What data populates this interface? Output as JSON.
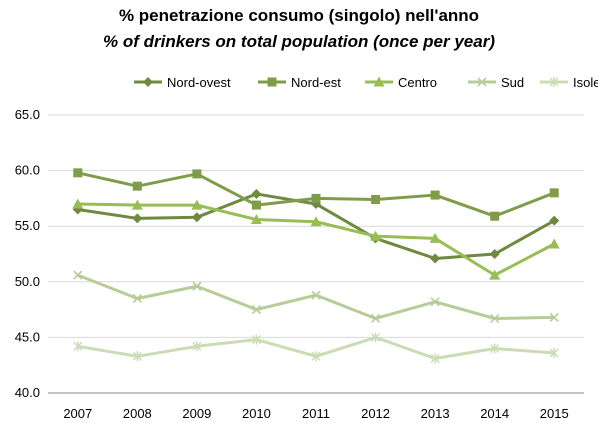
{
  "chart_data": {
    "type": "line",
    "title": "% penetrazione consumo (singolo) nell'anno",
    "subtitle": "% of drinkers on total population (once per year)",
    "xlabel": "",
    "ylabel": "",
    "x": [
      "2007",
      "2008",
      "2009",
      "2010",
      "2011",
      "2012",
      "2013",
      "2014",
      "2015"
    ],
    "ylim": [
      40.0,
      65.0
    ],
    "yticks": [
      "40.0",
      "45.0",
      "50.0",
      "55.0",
      "60.0",
      "65.0"
    ],
    "grid": true,
    "legend": "top",
    "series": [
      {
        "name": "Nord-ovest",
        "marker": "diamond",
        "color": "#6f8a3e",
        "values": [
          56.5,
          55.7,
          55.8,
          57.9,
          57.0,
          53.9,
          52.1,
          52.5,
          55.5
        ]
      },
      {
        "name": "Nord-est",
        "marker": "square",
        "color": "#7f9c48",
        "values": [
          59.8,
          58.6,
          59.7,
          56.9,
          57.5,
          57.4,
          57.8,
          55.9,
          58.0
        ]
      },
      {
        "name": "Centro",
        "marker": "triangle",
        "color": "#98bd55",
        "values": [
          57.0,
          56.9,
          56.9,
          55.6,
          55.4,
          54.1,
          53.9,
          50.6,
          53.4
        ]
      },
      {
        "name": "Sud",
        "marker": "x",
        "color": "#b7cc97",
        "values": [
          50.6,
          48.5,
          49.6,
          47.5,
          48.8,
          46.7,
          48.2,
          46.7,
          46.8
        ]
      },
      {
        "name": "Isole",
        "marker": "star",
        "color": "#cbdcb4",
        "values": [
          44.2,
          43.3,
          44.2,
          44.8,
          43.3,
          45.0,
          43.1,
          44.0,
          43.6
        ]
      }
    ]
  }
}
